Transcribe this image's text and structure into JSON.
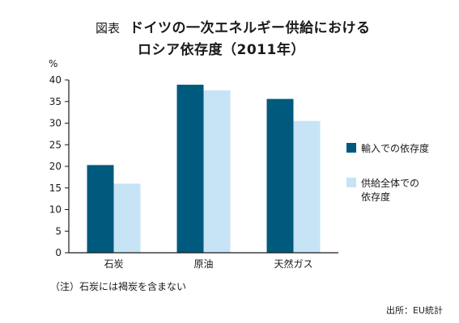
{
  "figure": {
    "prefix": "図表",
    "title_line1": "ドイツの一次エネルギー供給における",
    "title_line2": "ロシア依存度（2011年）"
  },
  "note": "（注）石炭には褐炭を含まない",
  "source": "出所：EU統計",
  "colors": {
    "import": "#005a7d",
    "total": "#c6e4f6",
    "axis": "#1a1a1a"
  },
  "chart_data": {
    "type": "bar",
    "categories": [
      "石炭",
      "原油",
      "天然ガス"
    ],
    "series": [
      {
        "name": "輸入での依存度",
        "values": [
          20.3,
          38.9,
          35.6
        ]
      },
      {
        "name": "供給全体での依存度",
        "values": [
          16.0,
          37.6,
          30.5
        ]
      }
    ],
    "ylabel": "%",
    "ylim": [
      0,
      40
    ],
    "yticks": [
      0,
      5,
      10,
      15,
      20,
      25,
      30,
      35,
      40
    ],
    "grid": false,
    "legend_position": "right"
  },
  "legend_display": [
    [
      "輸入での依存度"
    ],
    [
      "供給全体での",
      "依存度"
    ]
  ]
}
